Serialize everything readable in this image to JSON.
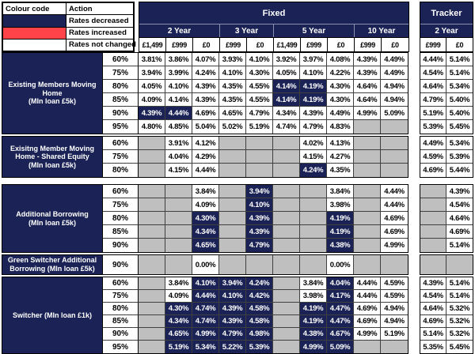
{
  "colors": {
    "navy": "#1B2356",
    "red": "#FF4348",
    "gray": "#BFBFBF"
  },
  "legend": {
    "col1": "Colour code",
    "col2": "Action",
    "rows": [
      {
        "swatch": "navy",
        "label": "Rates decreased"
      },
      {
        "swatch": "red",
        "label": "Rates increased"
      },
      {
        "swatch": "white",
        "label": "Rates not changed"
      }
    ]
  },
  "header": {
    "fixed_label": "Fixed",
    "tracker_label": "Tracker",
    "fixed_groups": [
      {
        "label": "2 Year",
        "fees": [
          "£1,499",
          "£999",
          "£0"
        ]
      },
      {
        "label": "3 Year",
        "fees": [
          "£999",
          "£0"
        ]
      },
      {
        "label": "5 Year",
        "fees": [
          "£1,499",
          "£999",
          "£0"
        ]
      },
      {
        "label": "10 Year",
        "fees": [
          "£999",
          "£0"
        ]
      }
    ],
    "tracker_groups": [
      {
        "label": "2 Year",
        "fees": [
          "£999",
          "£0"
        ]
      }
    ]
  },
  "sections": [
    {
      "label": "Existing Members Moving Home",
      "sublabel": "(MIn loan £5k)",
      "rows": [
        {
          "ltv": "60%",
          "f": [
            "3.81%",
            "3.86%",
            "4.07%",
            "3.93%",
            "4.10%",
            "3.92%",
            "3.97%",
            "4.08%",
            "4.39%",
            "4.49%"
          ],
          "hl": [],
          "t": [
            "4.44%",
            "5.14%"
          ],
          "thl": []
        },
        {
          "ltv": "75%",
          "f": [
            "3.94%",
            "3.99%",
            "4.24%",
            "4.10%",
            "4.30%",
            "4.05%",
            "4.10%",
            "4.22%",
            "4.39%",
            "4.49%"
          ],
          "hl": [],
          "t": [
            "4.54%",
            "5.14%"
          ],
          "thl": []
        },
        {
          "ltv": "80%",
          "f": [
            "4.05%",
            "4.10%",
            "4.39%",
            "4.35%",
            "4.55%",
            "4.14%",
            "4.19%",
            "4.30%",
            "4.64%",
            "4.94%"
          ],
          "hl": [
            5,
            6
          ],
          "t": [
            "4.64%",
            "5.34%"
          ],
          "thl": []
        },
        {
          "ltv": "85%",
          "f": [
            "4.09%",
            "4.14%",
            "4.39%",
            "4.35%",
            "4.55%",
            "4.14%",
            "4.19%",
            "4.30%",
            "4.64%",
            "4.94%"
          ],
          "hl": [
            5,
            6
          ],
          "t": [
            "4.79%",
            "5.40%"
          ],
          "thl": []
        },
        {
          "ltv": "90%",
          "f": [
            "4.39%",
            "4.44%",
            "4.69%",
            "4.65%",
            "4.79%",
            "4.34%",
            "4.39%",
            "4.49%",
            "4.99%",
            "5.09%"
          ],
          "hl": [
            0,
            1
          ],
          "t": [
            "5.19%",
            "5.40%"
          ],
          "thl": []
        },
        {
          "ltv": "95%",
          "f": [
            "4.80%",
            "4.85%",
            "5.04%",
            "5.02%",
            "5.19%",
            "4.74%",
            "4.79%",
            "4.83%",
            "",
            ""
          ],
          "hl": [],
          "t": [
            "5.39%",
            "5.45%"
          ],
          "thl": []
        }
      ]
    },
    {
      "label": "Exisitng Member Moving Home - Shared Equity",
      "sublabel": "(MIn loan £5k)",
      "rows": [
        {
          "ltv": "60%",
          "f": [
            "",
            "3.91%",
            "4.12%",
            "",
            "",
            "",
            "4.02%",
            "4.13%",
            "",
            ""
          ],
          "hl": [],
          "t": [
            "4.49%",
            "5.34%"
          ],
          "thl": []
        },
        {
          "ltv": "75%",
          "f": [
            "",
            "4.04%",
            "4.29%",
            "",
            "",
            "",
            "4.15%",
            "4.27%",
            "",
            ""
          ],
          "hl": [],
          "t": [
            "4.59%",
            "5.39%"
          ],
          "thl": []
        },
        {
          "ltv": "80%",
          "f": [
            "",
            "4.15%",
            "4.44%",
            "",
            "",
            "",
            "4.24%",
            "4.35%",
            "",
            ""
          ],
          "hl": [
            6
          ],
          "t": [
            "4.69%",
            "5.44%"
          ],
          "thl": []
        }
      ]
    },
    {
      "label": "Additional Borrowing",
      "sublabel": "(MIn loan £5k)",
      "rows": [
        {
          "ltv": "60%",
          "f": [
            "",
            "",
            "3.84%",
            "",
            "3.94%",
            "",
            "",
            "3.84%",
            "",
            "4.44%"
          ],
          "hl": [
            4
          ],
          "t": [
            "",
            "4.39%"
          ],
          "thl": []
        },
        {
          "ltv": "75%",
          "f": [
            "",
            "",
            "4.09%",
            "",
            "4.10%",
            "",
            "",
            "3.98%",
            "",
            "4.44%"
          ],
          "hl": [
            4
          ],
          "t": [
            "",
            "4.54%"
          ],
          "thl": []
        },
        {
          "ltv": "80%",
          "f": [
            "",
            "",
            "4.30%",
            "",
            "4.39%",
            "",
            "",
            "4.19%",
            "",
            "4.69%"
          ],
          "hl": [
            2,
            4,
            7
          ],
          "t": [
            "",
            "4.64%"
          ],
          "thl": []
        },
        {
          "ltv": "85%",
          "f": [
            "",
            "",
            "4.34%",
            "",
            "4.39%",
            "",
            "",
            "4.19%",
            "",
            "4.69%"
          ],
          "hl": [
            2,
            4,
            7
          ],
          "t": [
            "",
            "4.69%"
          ],
          "thl": []
        },
        {
          "ltv": "90%",
          "f": [
            "",
            "",
            "4.65%",
            "",
            "4.79%",
            "",
            "",
            "4.38%",
            "",
            "4.99%"
          ],
          "hl": [
            2,
            4,
            7
          ],
          "t": [
            "",
            "5.14%"
          ],
          "thl": []
        }
      ]
    },
    {
      "label": "Green Switcher Additional Borrowing (MIn loan £5k)",
      "sublabel": "",
      "rows": [
        {
          "ltv": "90%",
          "f": [
            "",
            "",
            "0.00%",
            "",
            "",
            "",
            "",
            "0.00%",
            "",
            ""
          ],
          "hl": [],
          "t": [
            "",
            ""
          ],
          "thl": []
        }
      ]
    },
    {
      "label": "Switcher (MIn loan £1k)",
      "sublabel": "",
      "rows": [
        {
          "ltv": "60%",
          "f": [
            "",
            "3.84%",
            "4.10%",
            "3.94%",
            "4.24%",
            "",
            "3.84%",
            "4.04%",
            "4.44%",
            "4.59%"
          ],
          "hl": [
            2,
            3,
            4,
            7
          ],
          "t": [
            "4.39%",
            "5.14%"
          ],
          "thl": []
        },
        {
          "ltv": "75%",
          "f": [
            "",
            "4.09%",
            "4.44%",
            "4.10%",
            "4.42%",
            "",
            "3.98%",
            "4.17%",
            "4.44%",
            "4.59%"
          ],
          "hl": [
            2,
            3,
            4,
            7
          ],
          "t": [
            "4.54%",
            "5.14%"
          ],
          "thl": []
        },
        {
          "ltv": "80%",
          "f": [
            "",
            "4.30%",
            "4.74%",
            "4.39%",
            "4.58%",
            "",
            "4.19%",
            "4.47%",
            "4.69%",
            "4.94%"
          ],
          "hl": [
            1,
            2,
            3,
            4,
            6,
            7
          ],
          "t": [
            "4.64%",
            "5.32%"
          ],
          "thl": []
        },
        {
          "ltv": "85%",
          "f": [
            "",
            "4.34%",
            "4.74%",
            "4.39%",
            "4.58%",
            "",
            "4.19%",
            "4.47%",
            "4.69%",
            "4.94%"
          ],
          "hl": [
            1,
            2,
            3,
            4,
            6,
            7
          ],
          "t": [
            "4.69%",
            "5.32%"
          ],
          "thl": []
        },
        {
          "ltv": "90%",
          "f": [
            "",
            "4.65%",
            "4.99%",
            "4.79%",
            "4.98%",
            "",
            "4.38%",
            "4.67%",
            "4.99%",
            "5.19%"
          ],
          "hl": [
            1,
            2,
            3,
            4,
            6,
            7
          ],
          "t": [
            "5.14%",
            "5.32%"
          ],
          "thl": []
        },
        {
          "ltv": "95%",
          "f": [
            "",
            "5.19%",
            "5.34%",
            "5.22%",
            "5.39%",
            "",
            "4.99%",
            "5.09%",
            "",
            ""
          ],
          "hl": [
            1,
            2,
            3,
            4,
            6,
            7
          ],
          "t": [
            "5.35%",
            "5.45%"
          ],
          "thl": []
        }
      ]
    }
  ]
}
